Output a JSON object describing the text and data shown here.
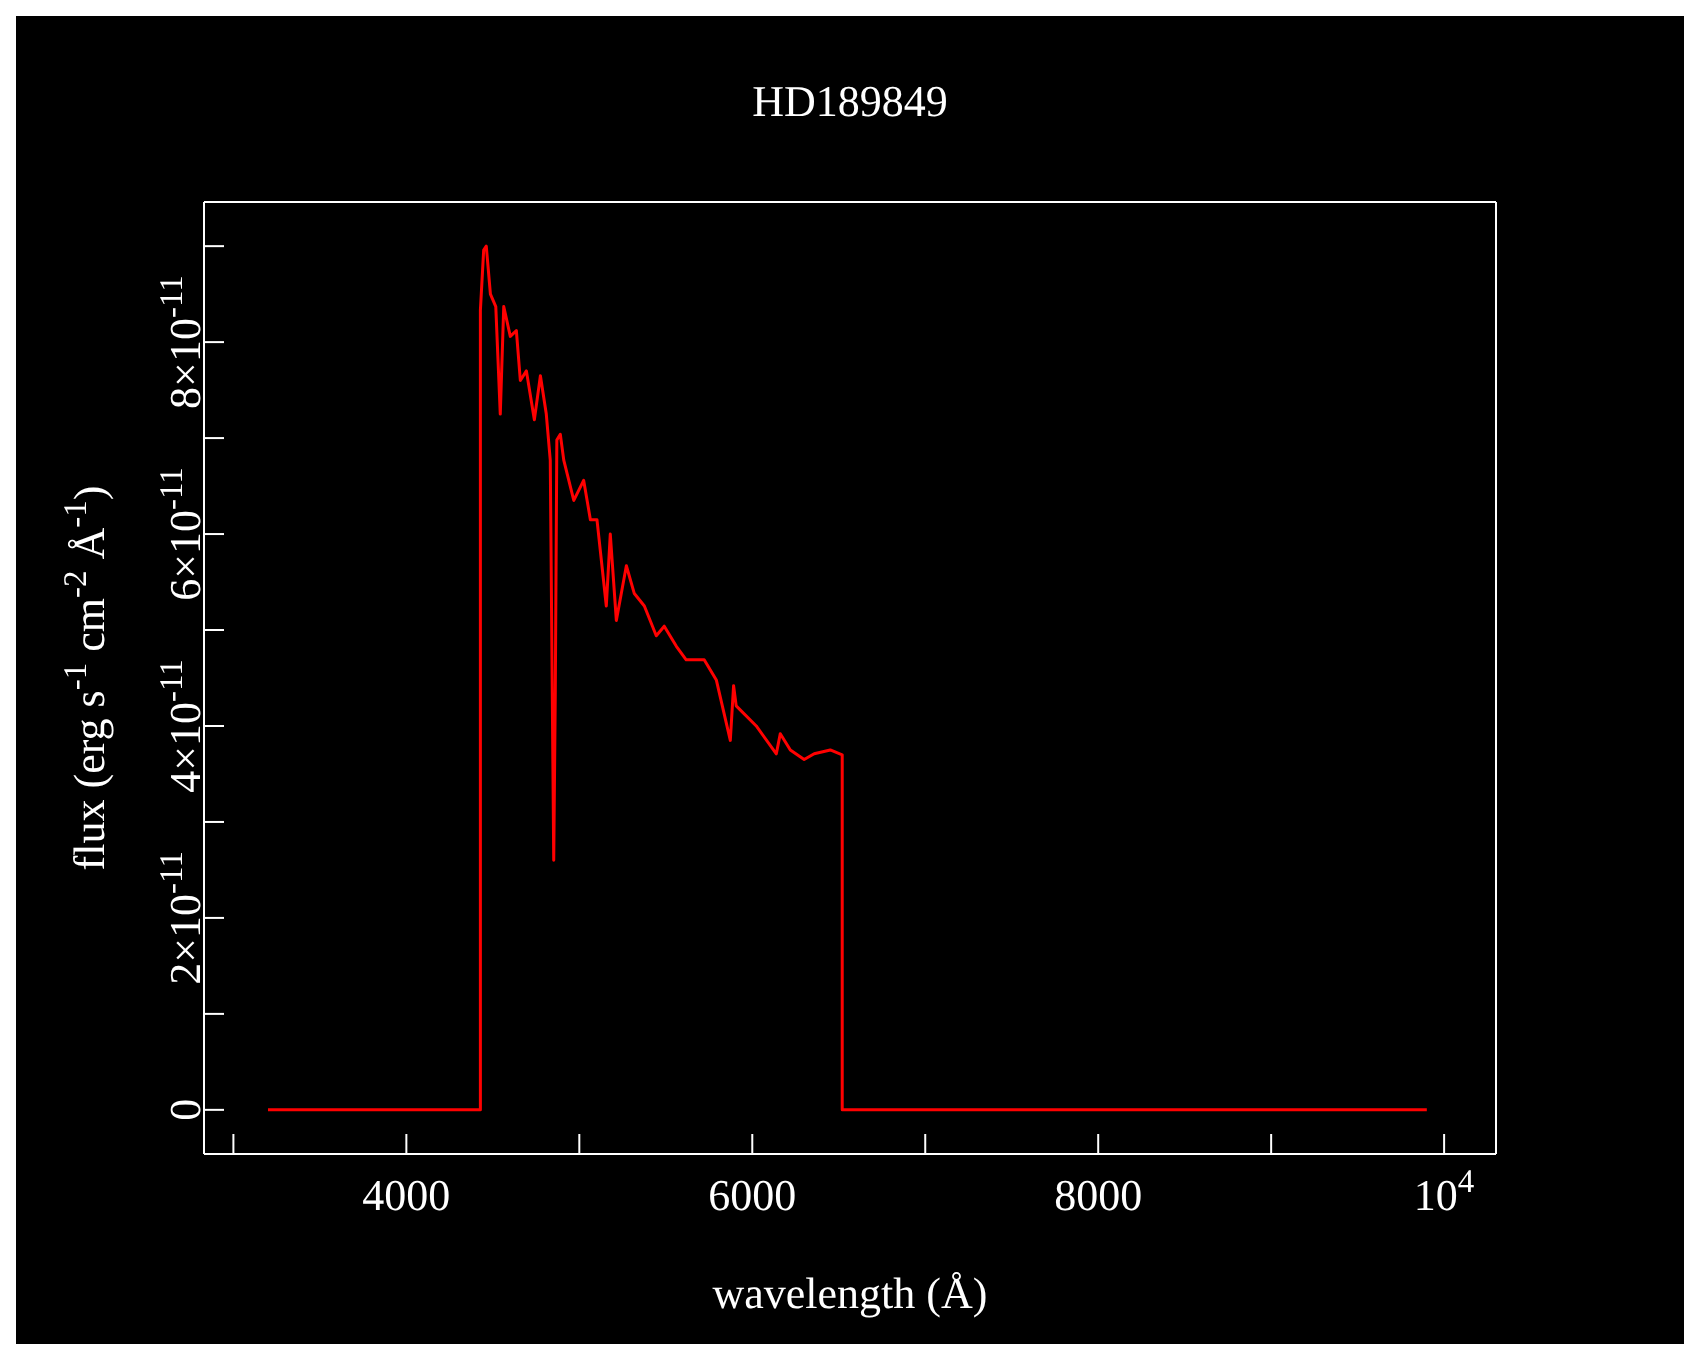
{
  "chart_data": {
    "type": "line",
    "title": "HD189849",
    "xlabel": "wavelength (Å)",
    "ylabel": "flux (erg s$^{-1}$ cm$^{-2}$ Å$^{-1}$)",
    "x": [
      3200,
      4428,
      4428,
      4447,
      4462,
      4486,
      4517,
      4543,
      4563,
      4601,
      4636,
      4659,
      4694,
      4740,
      4775,
      4809,
      4832,
      4852,
      4861,
      4870,
      4890,
      4910,
      4968,
      5025,
      5064,
      5102,
      5156,
      5179,
      5214,
      5272,
      5318,
      5376,
      5445,
      5491,
      5561,
      5618,
      5722,
      5792,
      5873,
      5892,
      5907,
      6023,
      6139,
      6162,
      6220,
      6300,
      6358,
      6451,
      6520,
      6520,
      9900
    ],
    "series": [
      {
        "color": "#ff0000",
        "values": [
          0,
          0,
          8.33e-11,
          8.96e-11,
          9e-11,
          8.5e-11,
          8.37e-11,
          7.25e-11,
          8.37e-11,
          8.06e-11,
          8.12e-11,
          7.6e-11,
          7.7e-11,
          7.19e-11,
          7.65e-11,
          7.25e-11,
          6.77e-11,
          2.6e-11,
          4.33e-11,
          6.98e-11,
          7.04e-11,
          6.77e-11,
          6.35e-11,
          6.56e-11,
          6.15e-11,
          6.15e-11,
          5.25e-11,
          6e-11,
          5.1e-11,
          5.67e-11,
          5.38e-11,
          5.25e-11,
          4.94e-11,
          5.04e-11,
          4.83e-11,
          4.69e-11,
          4.69e-11,
          4.48e-11,
          3.85e-11,
          4.42e-11,
          4.21e-11,
          4e-11,
          3.71e-11,
          3.92e-11,
          3.75e-11,
          3.65e-11,
          3.71e-11,
          3.75e-11,
          3.7e-11,
          0,
          0
        ]
      }
    ],
    "xlim": [
      2830,
      10300
    ],
    "xticks": [
      {
        "value": 3000,
        "label": null
      },
      4000,
      {
        "value": 5000,
        "label": null
      },
      6000,
      {
        "value": 7000,
        "label": null
      },
      8000,
      {
        "value": 9000,
        "label": null
      },
      {
        "value": 10000,
        "label": "10$^{4}$"
      }
    ],
    "ylim": [
      -4.6e-12,
      9.46e-11
    ],
    "yticks": [
      0,
      {
        "value": 1e-11,
        "label": null
      },
      {
        "value": 2e-11,
        "label": "2×10$^{-11}$"
      },
      {
        "value": 3e-11,
        "label": null
      },
      {
        "value": 4e-11,
        "label": "4×10$^{-11}$"
      },
      {
        "value": 5e-11,
        "label": null
      },
      {
        "value": 6e-11,
        "label": "6×10$^{-11}$"
      },
      {
        "value": 7e-11,
        "label": null
      },
      {
        "value": 8e-11,
        "label": "8×10$^{-11}$"
      },
      {
        "value": 9e-11,
        "label": null
      }
    ],
    "grid": false,
    "legend": false
  }
}
